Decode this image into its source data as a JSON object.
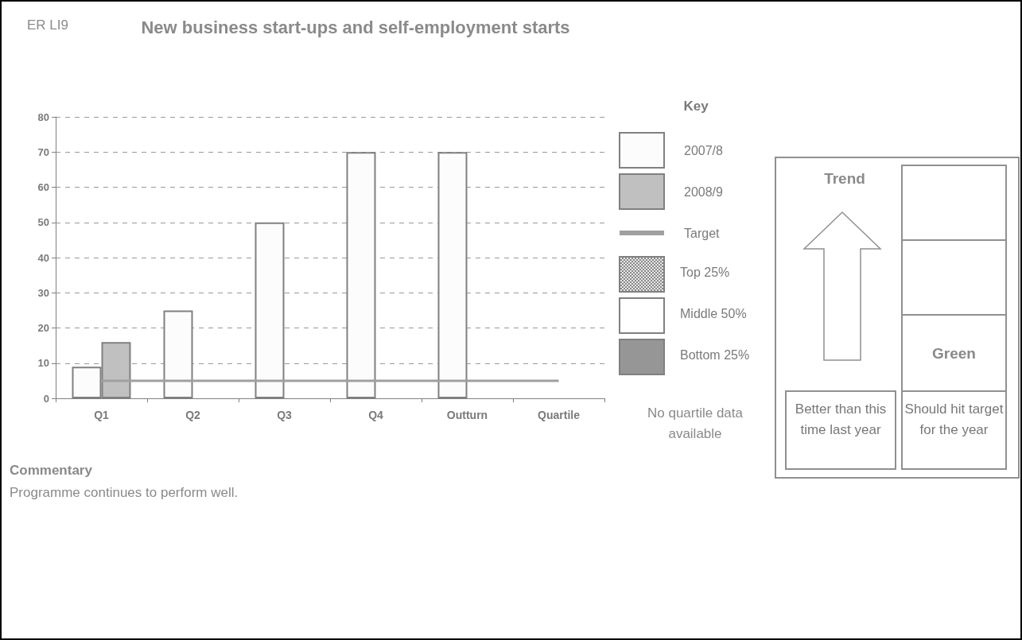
{
  "chart_data": {
    "type": "bar",
    "title": "New business start-ups and self-employment starts",
    "categories": [
      "Q1",
      "Q2",
      "Q3",
      "Q4",
      "Outturn",
      "Quartile"
    ],
    "series": [
      {
        "name": "2007/8",
        "color": "#fcfcfc",
        "values": [
          9,
          25,
          50,
          70,
          70,
          null
        ]
      },
      {
        "name": "2008/9",
        "color": "#c0c0c0",
        "values": [
          16,
          null,
          null,
          null,
          null,
          null
        ]
      },
      {
        "name": "Target",
        "type": "line",
        "color": "#a0a0a0",
        "values": [
          5,
          5,
          5,
          5,
          5,
          5
        ]
      }
    ],
    "ylim": [
      0,
      80
    ],
    "yticks": [
      0,
      10,
      20,
      30,
      40,
      50,
      60,
      70,
      80
    ],
    "grid": "y",
    "legend": "right",
    "legend_title": "Key",
    "marker": "none",
    "annotations": [
      "ER LI9",
      "No quartile data available",
      "Commentary",
      "Programme continues to perform well.",
      "Trend",
      "Green",
      "Better than this time last year",
      "Should hit target for the year",
      "Top 25%",
      "Middle 50%",
      "Bottom 25%"
    ]
  }
}
